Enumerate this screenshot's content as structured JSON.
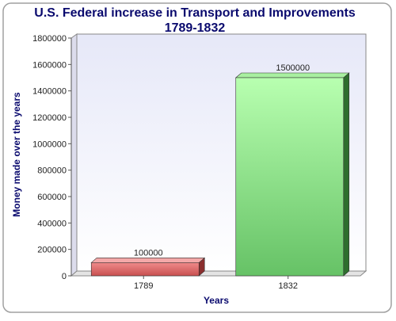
{
  "chart_data": {
    "type": "bar",
    "title_line1": "U.S. Federal increase in Transport and Improvements",
    "title_line2": "1789-1832",
    "xlabel": "Years",
    "ylabel": "Money made over the years",
    "categories": [
      "1789",
      "1832"
    ],
    "values": [
      100000,
      1500000
    ],
    "data_labels": [
      "100000",
      "1500000"
    ],
    "ylim": [
      0,
      1800000
    ],
    "yticks": [
      "0",
      "200000",
      "400000",
      "600000",
      "800000",
      "1000000",
      "1200000",
      "1400000",
      "1600000",
      "1800000"
    ],
    "grid": false,
    "legend": "none",
    "colors": {
      "title": "#0a0a6e",
      "axis_label": "#0a0a6e",
      "plot_bg_top": "#e6e8f8",
      "plot_bg_bottom": "#ffffff",
      "bar1_front_top": "#f08a8a",
      "bar1_front_bottom": "#c85050",
      "bar1_top": "#f4a8a8",
      "bar1_side": "#8a2e2e",
      "bar2_front_top": "#b8ffb0",
      "bar2_front_bottom": "#66c266",
      "bar2_top": "#a8f0a0",
      "bar2_side": "#2e6e2e"
    }
  }
}
